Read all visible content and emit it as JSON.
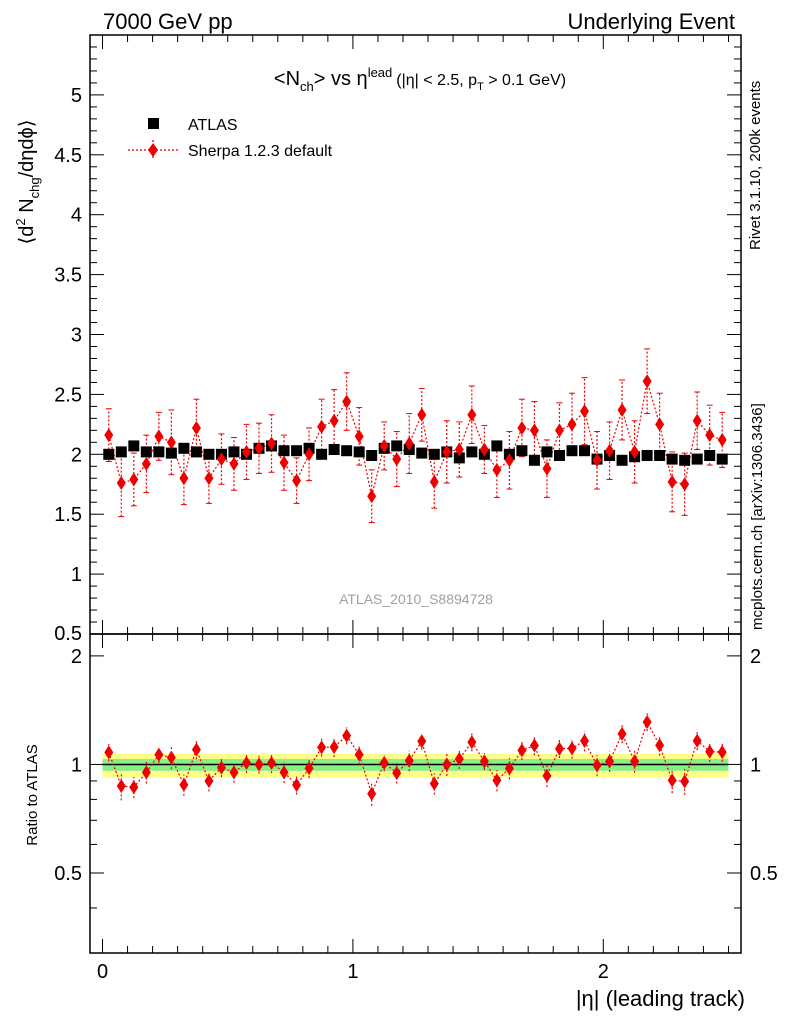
{
  "header": {
    "left": "7000 GeV pp",
    "right": "Underlying Event"
  },
  "side_labels": {
    "rivet": "Rivet 3.1.10,  200k events",
    "mcplots": "mcplots.cern.ch [arXiv:1306.3436]"
  },
  "chart_data": [
    {
      "type": "scatter",
      "panel": "main",
      "title": {
        "base": "<N",
        "sub1": "ch",
        "mid": "> vs η",
        "sup": "lead",
        "cut1": "(|η| < 2.5, p",
        "sub2": "T",
        "cut2": " > 0.1 GeV)"
      },
      "ylabel": {
        "a": "⟨d",
        "sup": "2",
        "b": " N",
        "sub": "chg",
        "c": "/dηdϕ⟩"
      },
      "ylim": [
        0.5,
        5.5
      ],
      "xlim": [
        -0.05,
        2.55
      ],
      "yticks": [
        "1",
        "1.5",
        "2",
        "2.5",
        "3",
        "3.5",
        "4",
        "4.5",
        "5"
      ],
      "ytick_values": [
        1,
        1.5,
        2,
        2.5,
        3,
        3.5,
        4,
        4.5,
        5
      ],
      "yticks_cut": "0.5",
      "watermark": "ATLAS_2010_S8894728",
      "legend_position": "top-left",
      "x": [
        0.025,
        0.075,
        0.125,
        0.175,
        0.225,
        0.275,
        0.325,
        0.375,
        0.425,
        0.475,
        0.525,
        0.575,
        0.625,
        0.675,
        0.725,
        0.775,
        0.825,
        0.875,
        0.925,
        0.975,
        1.025,
        1.075,
        1.125,
        1.175,
        1.225,
        1.275,
        1.325,
        1.375,
        1.425,
        1.475,
        1.525,
        1.575,
        1.625,
        1.675,
        1.725,
        1.775,
        1.825,
        1.875,
        1.925,
        1.975,
        2.025,
        2.075,
        2.125,
        2.175,
        2.225,
        2.275,
        2.325,
        2.375,
        2.425,
        2.475
      ],
      "series": [
        {
          "name": "ATLAS",
          "color": "#000000",
          "marker": "square",
          "values": [
            2.0,
            2.02,
            2.07,
            2.02,
            2.02,
            2.01,
            2.05,
            2.02,
            2.0,
            2.0,
            2.02,
            2.0,
            2.05,
            2.07,
            2.03,
            2.03,
            2.05,
            2.0,
            2.04,
            2.03,
            2.02,
            1.99,
            2.05,
            2.07,
            2.04,
            2.01,
            2.0,
            2.02,
            1.97,
            2.02,
            2.0,
            2.07,
            2.0,
            2.03,
            1.95,
            2.02,
            1.99,
            2.03,
            2.03,
            1.96,
            1.99,
            1.95,
            1.98,
            1.99,
            1.99,
            1.96,
            1.95,
            1.96,
            1.99,
            1.96
          ]
        },
        {
          "name": "Sherpa 1.2.3 default",
          "color": "#ee0000",
          "marker": "diamond",
          "linestyle": "dotted",
          "values": [
            2.16,
            1.76,
            1.79,
            1.92,
            2.15,
            2.1,
            1.8,
            2.22,
            1.8,
            1.96,
            1.92,
            2.02,
            2.05,
            2.09,
            1.93,
            1.78,
            2.0,
            2.23,
            2.28,
            2.44,
            2.15,
            1.65,
            2.07,
            1.96,
            2.09,
            2.33,
            1.77,
            2.02,
            2.04,
            2.33,
            2.04,
            1.87,
            1.95,
            2.22,
            2.2,
            1.88,
            2.2,
            2.25,
            2.36,
            1.95,
            2.03,
            2.37,
            2.02,
            2.61,
            2.25,
            1.77,
            1.75,
            2.28,
            2.16,
            2.12
          ],
          "errors": [
            0.22,
            0.28,
            0.22,
            0.24,
            0.2,
            0.27,
            0.22,
            0.24,
            0.21,
            0.21,
            0.22,
            0.23,
            0.21,
            0.24,
            0.23,
            0.19,
            0.22,
            0.23,
            0.26,
            0.24,
            0.24,
            0.22,
            0.2,
            0.23,
            0.25,
            0.22,
            0.22,
            0.26,
            0.23,
            0.24,
            0.2,
            0.23,
            0.24,
            0.24,
            0.24,
            0.24,
            0.23,
            0.26,
            0.28,
            0.24,
            0.24,
            0.25,
            0.26,
            0.27,
            0.26,
            0.25,
            0.26,
            0.24,
            0.25,
            0.23
          ]
        }
      ]
    },
    {
      "type": "scatter",
      "panel": "ratio",
      "ylabel": "Ratio to ATLAS",
      "ylim": [
        0.3,
        2.3
      ],
      "xlim": [
        -0.05,
        2.55
      ],
      "xlabel": "|η| (leading track)",
      "xticks": [
        "0",
        "1",
        "2"
      ],
      "xtick_values": [
        0,
        1,
        2
      ],
      "yticks": [
        "0.5",
        "1",
        "2"
      ],
      "ytick_values": [
        0.5,
        1,
        2
      ],
      "bands": [
        {
          "color": "#ffff88",
          "lo": 0.92,
          "hi": 1.07
        },
        {
          "color": "#88ee88",
          "lo": 0.96,
          "hi": 1.035
        }
      ],
      "reference": 1.0
    }
  ]
}
